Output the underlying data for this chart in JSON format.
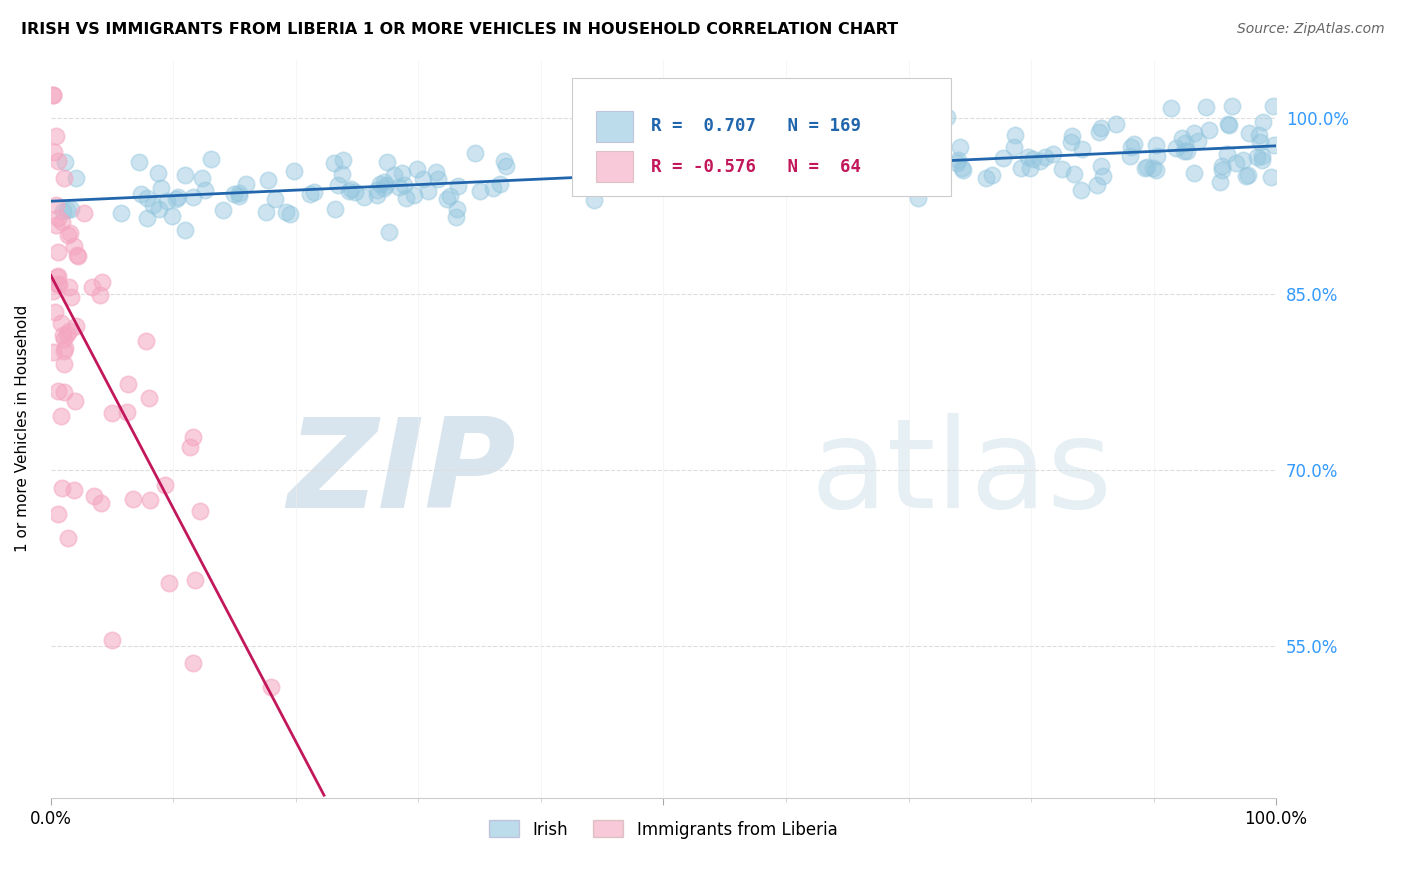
{
  "title": "IRISH VS IMMIGRANTS FROM LIBERIA 1 OR MORE VEHICLES IN HOUSEHOLD CORRELATION CHART",
  "source": "Source: ZipAtlas.com",
  "ylabel": "1 or more Vehicles in Household",
  "xlim": [
    0.0,
    1.0
  ],
  "ylim": [
    0.42,
    1.05
  ],
  "yticks": [
    0.55,
    0.7,
    0.85,
    1.0
  ],
  "ytick_labels": [
    "55.0%",
    "70.0%",
    "85.0%",
    "100.0%"
  ],
  "legend_irish_R": "0.707",
  "legend_irish_N": "169",
  "legend_liberia_R": "-0.576",
  "legend_liberia_N": "64",
  "irish_color": "#92c5de",
  "liberia_color": "#f4a6c0",
  "irish_line_color": "#2166ac",
  "liberia_line_color": "#c2185b",
  "watermark_zip": "ZIP",
  "watermark_atlas": "atlas",
  "watermark_color": "#dce8f0",
  "irish_n": 169,
  "liberia_n": 64,
  "irish_R": 0.707,
  "liberia_R": -0.576
}
